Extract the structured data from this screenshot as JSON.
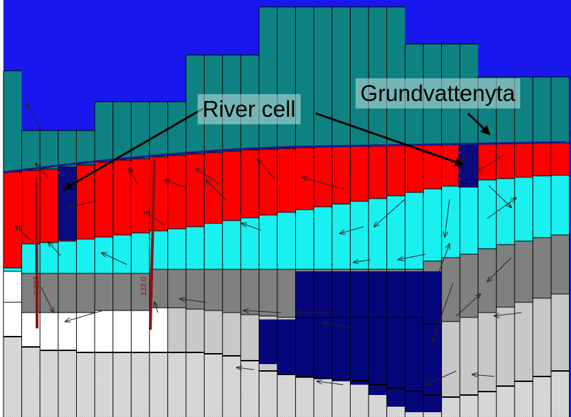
{
  "callouts": {
    "river_cell": "River cell",
    "groundwater_surface": "Grundvattenyta"
  },
  "well_labels": [
    "132.0",
    "132.0"
  ],
  "colors": {
    "sky": "#1818ee",
    "unsaturated_zone": "#0e8282",
    "layer_top": "#ff0000",
    "layer_second": "#19f0f0",
    "layer_grey": "#808080",
    "layer_light_grey": "#c8c8c8",
    "layer_bottom": "#d9d9d9",
    "layer_white": "#ffffff",
    "river_cell": "#0a0a80",
    "deep_block": "#06067c",
    "water_table_line": "#121a8c",
    "well": "#8c1010"
  }
}
